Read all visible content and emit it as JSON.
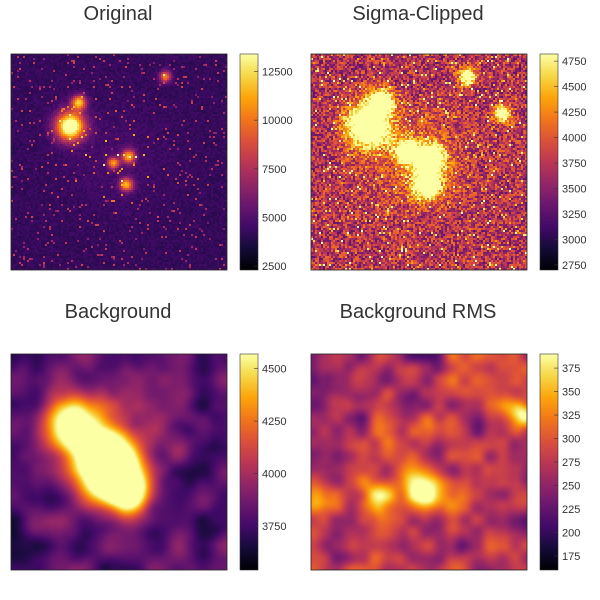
{
  "chart_data": [
    {
      "type": "heatmap",
      "title": "Original",
      "colormap": "inferno",
      "pattern": "stars-sparse",
      "clim": [
        2300,
        13400
      ],
      "colorbar_ticks": [
        2500,
        5000,
        7500,
        10000,
        12500
      ],
      "colorbar_tick_labels": [
        "2500",
        "5000",
        "7500",
        "10000",
        "12500"
      ],
      "sources": [
        {
          "x": 0.27,
          "y": 0.33,
          "r": 0.03,
          "amp": 1.0
        },
        {
          "x": 0.31,
          "y": 0.22,
          "r": 0.015,
          "amp": 0.7
        },
        {
          "x": 0.54,
          "y": 0.47,
          "r": 0.014,
          "amp": 0.65
        },
        {
          "x": 0.53,
          "y": 0.6,
          "r": 0.014,
          "amp": 0.65
        },
        {
          "x": 0.47,
          "y": 0.5,
          "r": 0.012,
          "amp": 0.6
        },
        {
          "x": 0.71,
          "y": 0.1,
          "r": 0.012,
          "amp": 0.55
        }
      ]
    },
    {
      "type": "heatmap",
      "title": "Sigma-Clipped",
      "colormap": "inferno",
      "pattern": "stars-clipped",
      "clim": [
        2700,
        4820
      ],
      "colorbar_ticks": [
        2750,
        3000,
        3250,
        3500,
        3750,
        4000,
        4250,
        4500,
        4750
      ],
      "colorbar_tick_labels": [
        "2750",
        "3000",
        "3250",
        "3500",
        "3750",
        "4000",
        "4250",
        "4500",
        "4750"
      ],
      "sources": [
        {
          "x": 0.26,
          "y": 0.33,
          "r": 0.045,
          "amp": 1.0
        },
        {
          "x": 0.32,
          "y": 0.22,
          "r": 0.025,
          "amp": 0.9
        },
        {
          "x": 0.55,
          "y": 0.48,
          "r": 0.03,
          "amp": 0.9
        },
        {
          "x": 0.53,
          "y": 0.6,
          "r": 0.03,
          "amp": 0.9
        },
        {
          "x": 0.44,
          "y": 0.45,
          "r": 0.025,
          "amp": 0.9
        },
        {
          "x": 0.88,
          "y": 0.27,
          "r": 0.018,
          "amp": 0.8
        },
        {
          "x": 0.72,
          "y": 0.1,
          "r": 0.018,
          "amp": 0.8
        }
      ]
    },
    {
      "type": "heatmap",
      "title": "Background",
      "colormap": "inferno",
      "pattern": "smooth-background",
      "clim": [
        3540,
        4570
      ],
      "colorbar_ticks": [
        3750,
        4000,
        4250,
        4500
      ],
      "colorbar_tick_labels": [
        "3750",
        "4000",
        "4250",
        "4500"
      ],
      "sources": [
        {
          "x": 0.27,
          "y": 0.33,
          "r": 0.06,
          "amp": 1.0
        },
        {
          "x": 0.44,
          "y": 0.45,
          "r": 0.06,
          "amp": 0.8
        },
        {
          "x": 0.44,
          "y": 0.55,
          "r": 0.06,
          "amp": 0.95
        },
        {
          "x": 0.53,
          "y": 0.62,
          "r": 0.05,
          "amp": 0.8
        }
      ]
    },
    {
      "type": "heatmap",
      "title": "Background RMS",
      "colormap": "inferno",
      "pattern": "smooth-rms",
      "clim": [
        160,
        390
      ],
      "colorbar_ticks": [
        175,
        200,
        225,
        250,
        275,
        300,
        325,
        350,
        375
      ],
      "colorbar_tick_labels": [
        "175",
        "200",
        "225",
        "250",
        "275",
        "300",
        "325",
        "350",
        "375"
      ],
      "sources": [
        {
          "x": 0.52,
          "y": 0.64,
          "r": 0.04,
          "amp": 0.55
        },
        {
          "x": 0.3,
          "y": 0.65,
          "r": 0.04,
          "amp": 0.4
        },
        {
          "x": 0.98,
          "y": 0.27,
          "r": 0.03,
          "amp": 0.6
        },
        {
          "x": 0.02,
          "y": 0.66,
          "r": 0.03,
          "amp": 0.45
        }
      ]
    }
  ]
}
